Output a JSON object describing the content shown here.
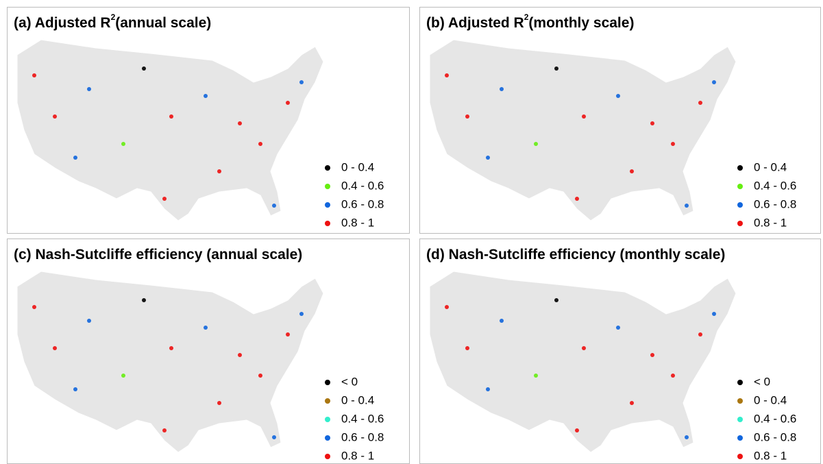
{
  "panels": [
    {
      "title": {
        "prefix": "(a) Adjusted R",
        "sup": "2",
        "suffix": "(annual scale)"
      },
      "legend": [
        {
          "label": "0 - 0.4",
          "color": "#000000"
        },
        {
          "label": "0.4 - 0.6",
          "color": "#66ee11"
        },
        {
          "label": "0.6 - 0.8",
          "color": "#1166dd"
        },
        {
          "label": "0.8 - 1",
          "color": "#ee1111"
        }
      ]
    },
    {
      "title": {
        "prefix": "(b) Adjusted R",
        "sup": "2",
        "suffix": "(monthly scale)"
      },
      "legend": [
        {
          "label": "0 - 0.4",
          "color": "#000000"
        },
        {
          "label": "0.4 - 0.6",
          "color": "#66ee11"
        },
        {
          "label": "0.6 - 0.8",
          "color": "#1166dd"
        },
        {
          "label": "0.8 - 1",
          "color": "#ee1111"
        }
      ]
    },
    {
      "title": {
        "prefix": "(c) Nash-Sutcliffe efficiency (annual scale)"
      },
      "legend": [
        {
          "label": "< 0",
          "color": "#000000"
        },
        {
          "label": "0 - 0.4",
          "color": "#aa7711"
        },
        {
          "label": "0.4 - 0.6",
          "color": "#33eecc"
        },
        {
          "label": "0.6 - 0.8",
          "color": "#1166dd"
        },
        {
          "label": "0.8 - 1",
          "color": "#ee1111"
        }
      ]
    },
    {
      "title": {
        "prefix": "(d) Nash-Sutcliffe efficiency (monthly scale)"
      },
      "legend": [
        {
          "label": "< 0",
          "color": "#000000"
        },
        {
          "label": "0 - 0.4",
          "color": "#aa7711"
        },
        {
          "label": "0.4 - 0.6",
          "color": "#33eecc"
        },
        {
          "label": "0.6 - 0.8",
          "color": "#1166dd"
        },
        {
          "label": "0.8 - 1",
          "color": "#ee1111"
        }
      ]
    }
  ]
}
